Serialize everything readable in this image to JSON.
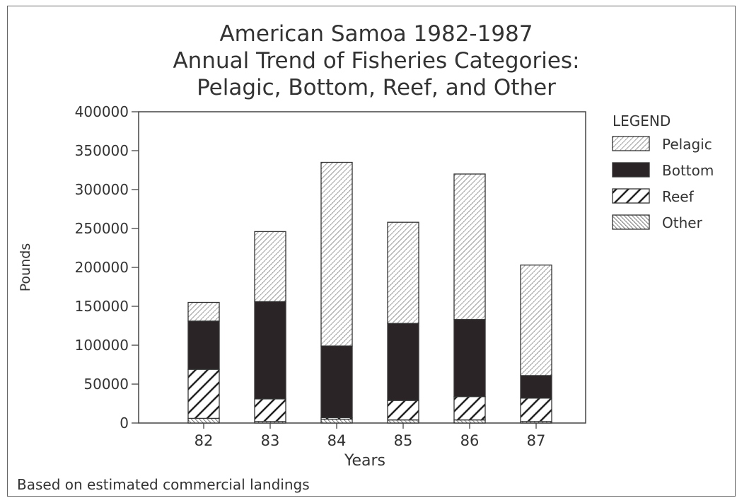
{
  "chart_data": {
    "type": "bar",
    "stacked": true,
    "title": [
      "American Samoa 1982-1987",
      "Annual Trend of Fisheries Categories:",
      "Pelagic, Bottom, Reef, and Other"
    ],
    "xlabel": "Years",
    "ylabel": "Pounds",
    "ylim": [
      0,
      400000
    ],
    "yticks": [
      "0",
      "50000",
      "100000",
      "150000",
      "200000",
      "250000",
      "300000",
      "350000",
      "400000"
    ],
    "categories": [
      "82",
      "83",
      "84",
      "85",
      "86",
      "87"
    ],
    "series": [
      {
        "name": "Other",
        "values": [
          6000,
          2000,
          5000,
          4000,
          4000,
          2000
        ],
        "pattern": "other"
      },
      {
        "name": "Reef",
        "values": [
          63000,
          29000,
          2000,
          25000,
          30000,
          30000
        ],
        "pattern": "reef"
      },
      {
        "name": "Bottom",
        "values": [
          62000,
          125000,
          92000,
          99000,
          99000,
          29000
        ],
        "pattern": "bottom"
      },
      {
        "name": "Pelagic",
        "values": [
          24000,
          90000,
          236000,
          130000,
          187000,
          142000
        ],
        "pattern": "pelagic"
      }
    ],
    "legend": {
      "title": "LEGEND",
      "placement": "right",
      "items": [
        {
          "name": "Pelagic",
          "pattern": "pelagic"
        },
        {
          "name": "Bottom",
          "pattern": "bottom"
        },
        {
          "name": "Reef",
          "pattern": "reef"
        },
        {
          "name": "Other",
          "pattern": "other"
        }
      ]
    },
    "footnote": "Based on estimated commercial landings",
    "colors": {
      "bottom": "#2b2426",
      "ink": "#333333"
    }
  }
}
